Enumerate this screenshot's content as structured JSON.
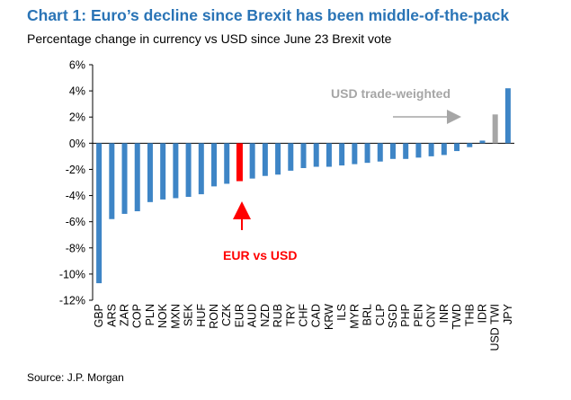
{
  "header": {
    "title": "Chart 1: Euro’s decline since Brexit has been middle-of-the-pack",
    "subtitle": "Percentage change in currency vs USD since June 23 Brexit vote"
  },
  "footer": {
    "source": "Source: J.P. Morgan"
  },
  "colors": {
    "title": "#2a74b6",
    "bar": "#3e85c6",
    "highlight": "#ff0000",
    "twi": "#a6a6a6",
    "annotation_gray": "#a6a6a6",
    "arrow_gray": "#a6a6a6"
  },
  "annotations": {
    "eur": "EUR vs USD",
    "twi": "USD trade-weighted"
  },
  "chart_data": {
    "type": "bar",
    "categories": [
      "GBP",
      "ARS",
      "ZAR",
      "COP",
      "PLN",
      "NOK",
      "MXN",
      "SEK",
      "HUF",
      "RON",
      "CZK",
      "EUR",
      "AUD",
      "NZD",
      "RUB",
      "TRY",
      "CHF",
      "CAD",
      "KRW",
      "ILS",
      "MYR",
      "BRL",
      "CLP",
      "SGD",
      "PHP",
      "PEN",
      "CNY",
      "INR",
      "TWD",
      "THB",
      "IDR",
      "USD TWI",
      "JPY"
    ],
    "values": [
      -10.7,
      -5.8,
      -5.4,
      -5.2,
      -4.5,
      -4.3,
      -4.2,
      -4.1,
      -3.9,
      -3.3,
      -3.1,
      -2.9,
      -2.7,
      -2.5,
      -2.4,
      -2.1,
      -1.9,
      -1.8,
      -1.8,
      -1.7,
      -1.6,
      -1.5,
      -1.4,
      -1.2,
      -1.2,
      -1.1,
      -1.0,
      -0.9,
      -0.6,
      -0.3,
      0.2,
      2.2,
      4.2
    ],
    "highlight": "EUR",
    "secondary": "USD TWI",
    "yticks": [
      6,
      4,
      2,
      0,
      -2,
      -4,
      -6,
      -8,
      -10,
      -12
    ],
    "ylim": [
      -12,
      6
    ],
    "y_format": "percent",
    "grid": false,
    "legend": "none"
  }
}
